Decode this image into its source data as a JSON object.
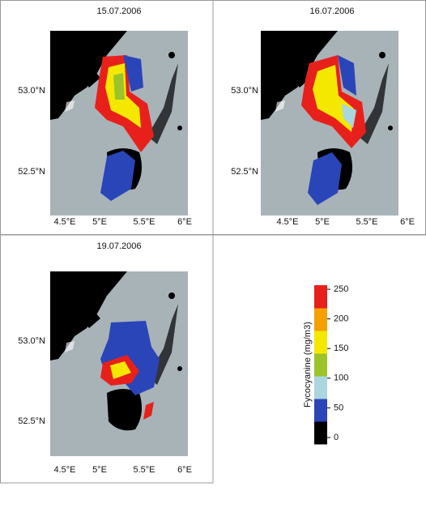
{
  "panels": [
    {
      "title": "15.07.2006",
      "lat_labels": [
        "53.0°N",
        "52.5°N"
      ],
      "lon_labels": [
        "4.5°E",
        "5°E",
        "5.5°E",
        "6°E"
      ]
    },
    {
      "title": "16.07.2006",
      "lat_labels": [
        "53.0°N",
        "52.5°N"
      ],
      "lon_labels": [
        "4.5°E",
        "5°E",
        "5.5°E",
        "6°E"
      ]
    },
    {
      "title": "19.07.2006",
      "lat_labels": [
        "53.0°N",
        "52.5°N"
      ],
      "lon_labels": [
        "4.5°E",
        "5°E",
        "5.5°E",
        "6°E"
      ]
    }
  ],
  "legend": {
    "label": "Fycocyanine (mg/m3)",
    "ticks": [
      0,
      50,
      100,
      150,
      200,
      250
    ],
    "colors": [
      "#000000",
      "#2a45b8",
      "#a9d6df",
      "#9cc42a",
      "#f5e800",
      "#f5a000",
      "#e8201c"
    ]
  }
}
